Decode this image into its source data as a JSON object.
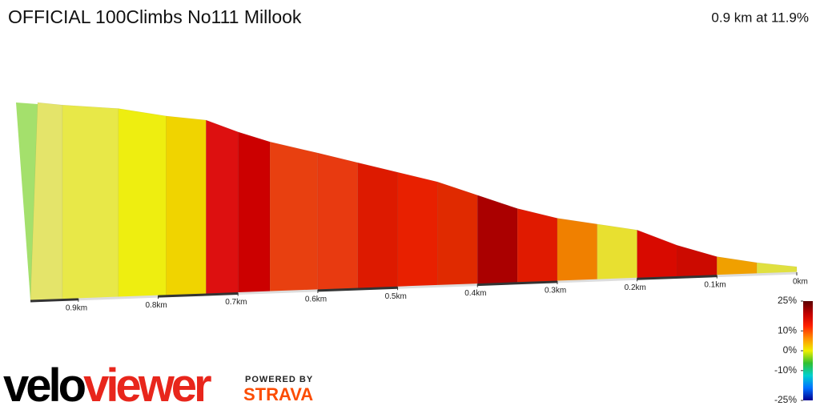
{
  "chart_data": {
    "type": "climb-profile",
    "title": "OFFICIAL 100Climbs No111 Millook",
    "subtitle": "0.9 km at 11.9%",
    "x": [
      0.96,
      0.92,
      0.85,
      0.79,
      0.74,
      0.7,
      0.66,
      0.6,
      0.55,
      0.5,
      0.45,
      0.4,
      0.35,
      0.3,
      0.25,
      0.2,
      0.15,
      0.1,
      0.05,
      0
    ],
    "values": [
      107,
      105,
      102,
      97,
      94,
      87,
      81,
      74,
      68,
      62,
      56,
      48,
      40,
      34,
      30,
      26,
      17,
      10,
      6,
      3
    ],
    "segment_colors": [
      "#e4e46a",
      "#e8e848",
      "#eeee10",
      "#f0d400",
      "#dd1010",
      "#cc0000",
      "#e84010",
      "#e83a10",
      "#dd1a00",
      "#e82000",
      "#e02a00",
      "#aa0000",
      "#e01a00",
      "#f08000",
      "#e8e030",
      "#d80a00",
      "#cc0a00",
      "#f0a000",
      "#e0e040"
    ],
    "side_color": "#a4e06c",
    "xlim": [
      0.96,
      0
    ],
    "xticks": [
      {
        "value": 0.9,
        "label": "0.9km"
      },
      {
        "value": 0.8,
        "label": "0.8km"
      },
      {
        "value": 0.7,
        "label": "0.7km"
      },
      {
        "value": 0.6,
        "label": "0.6km"
      },
      {
        "value": 0.5,
        "label": "0.5km"
      },
      {
        "value": 0.4,
        "label": "0.4km"
      },
      {
        "value": 0.3,
        "label": "0.3km"
      },
      {
        "value": 0.2,
        "label": "0.2km"
      },
      {
        "value": 0.1,
        "label": "0.1km"
      },
      {
        "value": 0,
        "label": "0km"
      }
    ],
    "colorbar": {
      "lim": [
        25,
        -25
      ],
      "ticks": [
        {
          "value": 25,
          "label": "25%"
        },
        {
          "value": 10,
          "label": "10%"
        },
        {
          "value": 0,
          "label": "0%"
        },
        {
          "value": -10,
          "label": "-10%"
        },
        {
          "value": -25,
          "label": "-25%"
        }
      ],
      "colors": [
        "#5a0000",
        "#c00000",
        "#ff2000",
        "#ff9000",
        "#f0f000",
        "#30c030",
        "#00d0d0",
        "#0070ff",
        "#000090"
      ]
    }
  },
  "logo": {
    "velo": "velo",
    "viewer": "viewer",
    "powered_by": "POWERED BY",
    "strava": "STRAVA"
  }
}
